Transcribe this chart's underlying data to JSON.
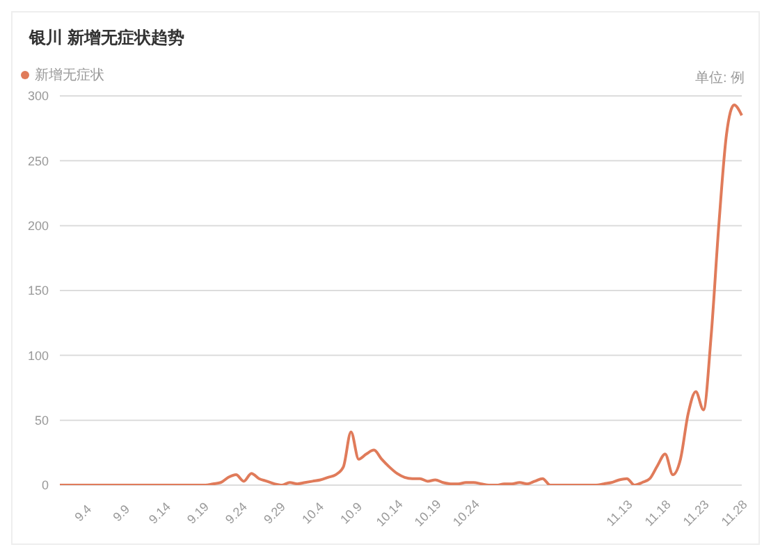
{
  "chart_data": {
    "type": "line",
    "title": "银川 新增无症状趋势",
    "annotations": [
      "单位: 例"
    ],
    "categories": [
      null,
      null,
      null,
      "9.4",
      null,
      null,
      null,
      null,
      "9.9",
      null,
      null,
      null,
      null,
      "9.14",
      null,
      null,
      null,
      null,
      "9.19",
      null,
      null,
      null,
      null,
      "9.24",
      null,
      null,
      null,
      null,
      "9.29",
      null,
      null,
      null,
      null,
      "10.4",
      null,
      null,
      null,
      null,
      "10.9",
      null,
      null,
      null,
      null,
      "10.14",
      null,
      null,
      null,
      null,
      "10.19",
      null,
      null,
      null,
      null,
      "10.24",
      null,
      null,
      null,
      null,
      null,
      null,
      null,
      null,
      null,
      null,
      null,
      null,
      null,
      null,
      null,
      null,
      null,
      null,
      null,
      "11.13",
      null,
      null,
      null,
      null,
      "11.18",
      null,
      null,
      null,
      null,
      "11.23",
      null,
      null,
      null,
      null,
      "11.28",
      null
    ],
    "series": [
      {
        "name": "新增无症状",
        "color": "#e07b5a",
        "values": [
          0,
          0,
          0,
          0,
          0,
          0,
          0,
          0,
          0,
          0,
          0,
          0,
          0,
          0,
          0,
          0,
          0,
          0,
          0,
          0,
          1,
          2,
          6,
          8,
          3,
          9,
          5,
          3,
          1,
          0,
          2,
          1,
          2,
          3,
          4,
          6,
          8,
          14,
          41,
          20,
          24,
          27,
          20,
          14,
          9,
          6,
          5,
          5,
          3,
          4,
          2,
          1,
          1,
          2,
          2,
          1,
          0,
          0,
          1,
          1,
          2,
          1,
          3,
          5,
          0,
          0,
          0,
          0,
          0,
          0,
          0,
          1,
          2,
          4,
          5,
          0,
          2,
          5,
          15,
          24,
          8,
          20,
          55,
          72,
          58,
          115,
          200,
          270,
          293,
          285
        ]
      }
    ],
    "ylim": [
      0,
      300
    ],
    "yticks": [
      0,
      50,
      100,
      150,
      200,
      250,
      300
    ],
    "grid": "y",
    "legend": "top left",
    "marker": "none",
    "line_style": "solid"
  }
}
